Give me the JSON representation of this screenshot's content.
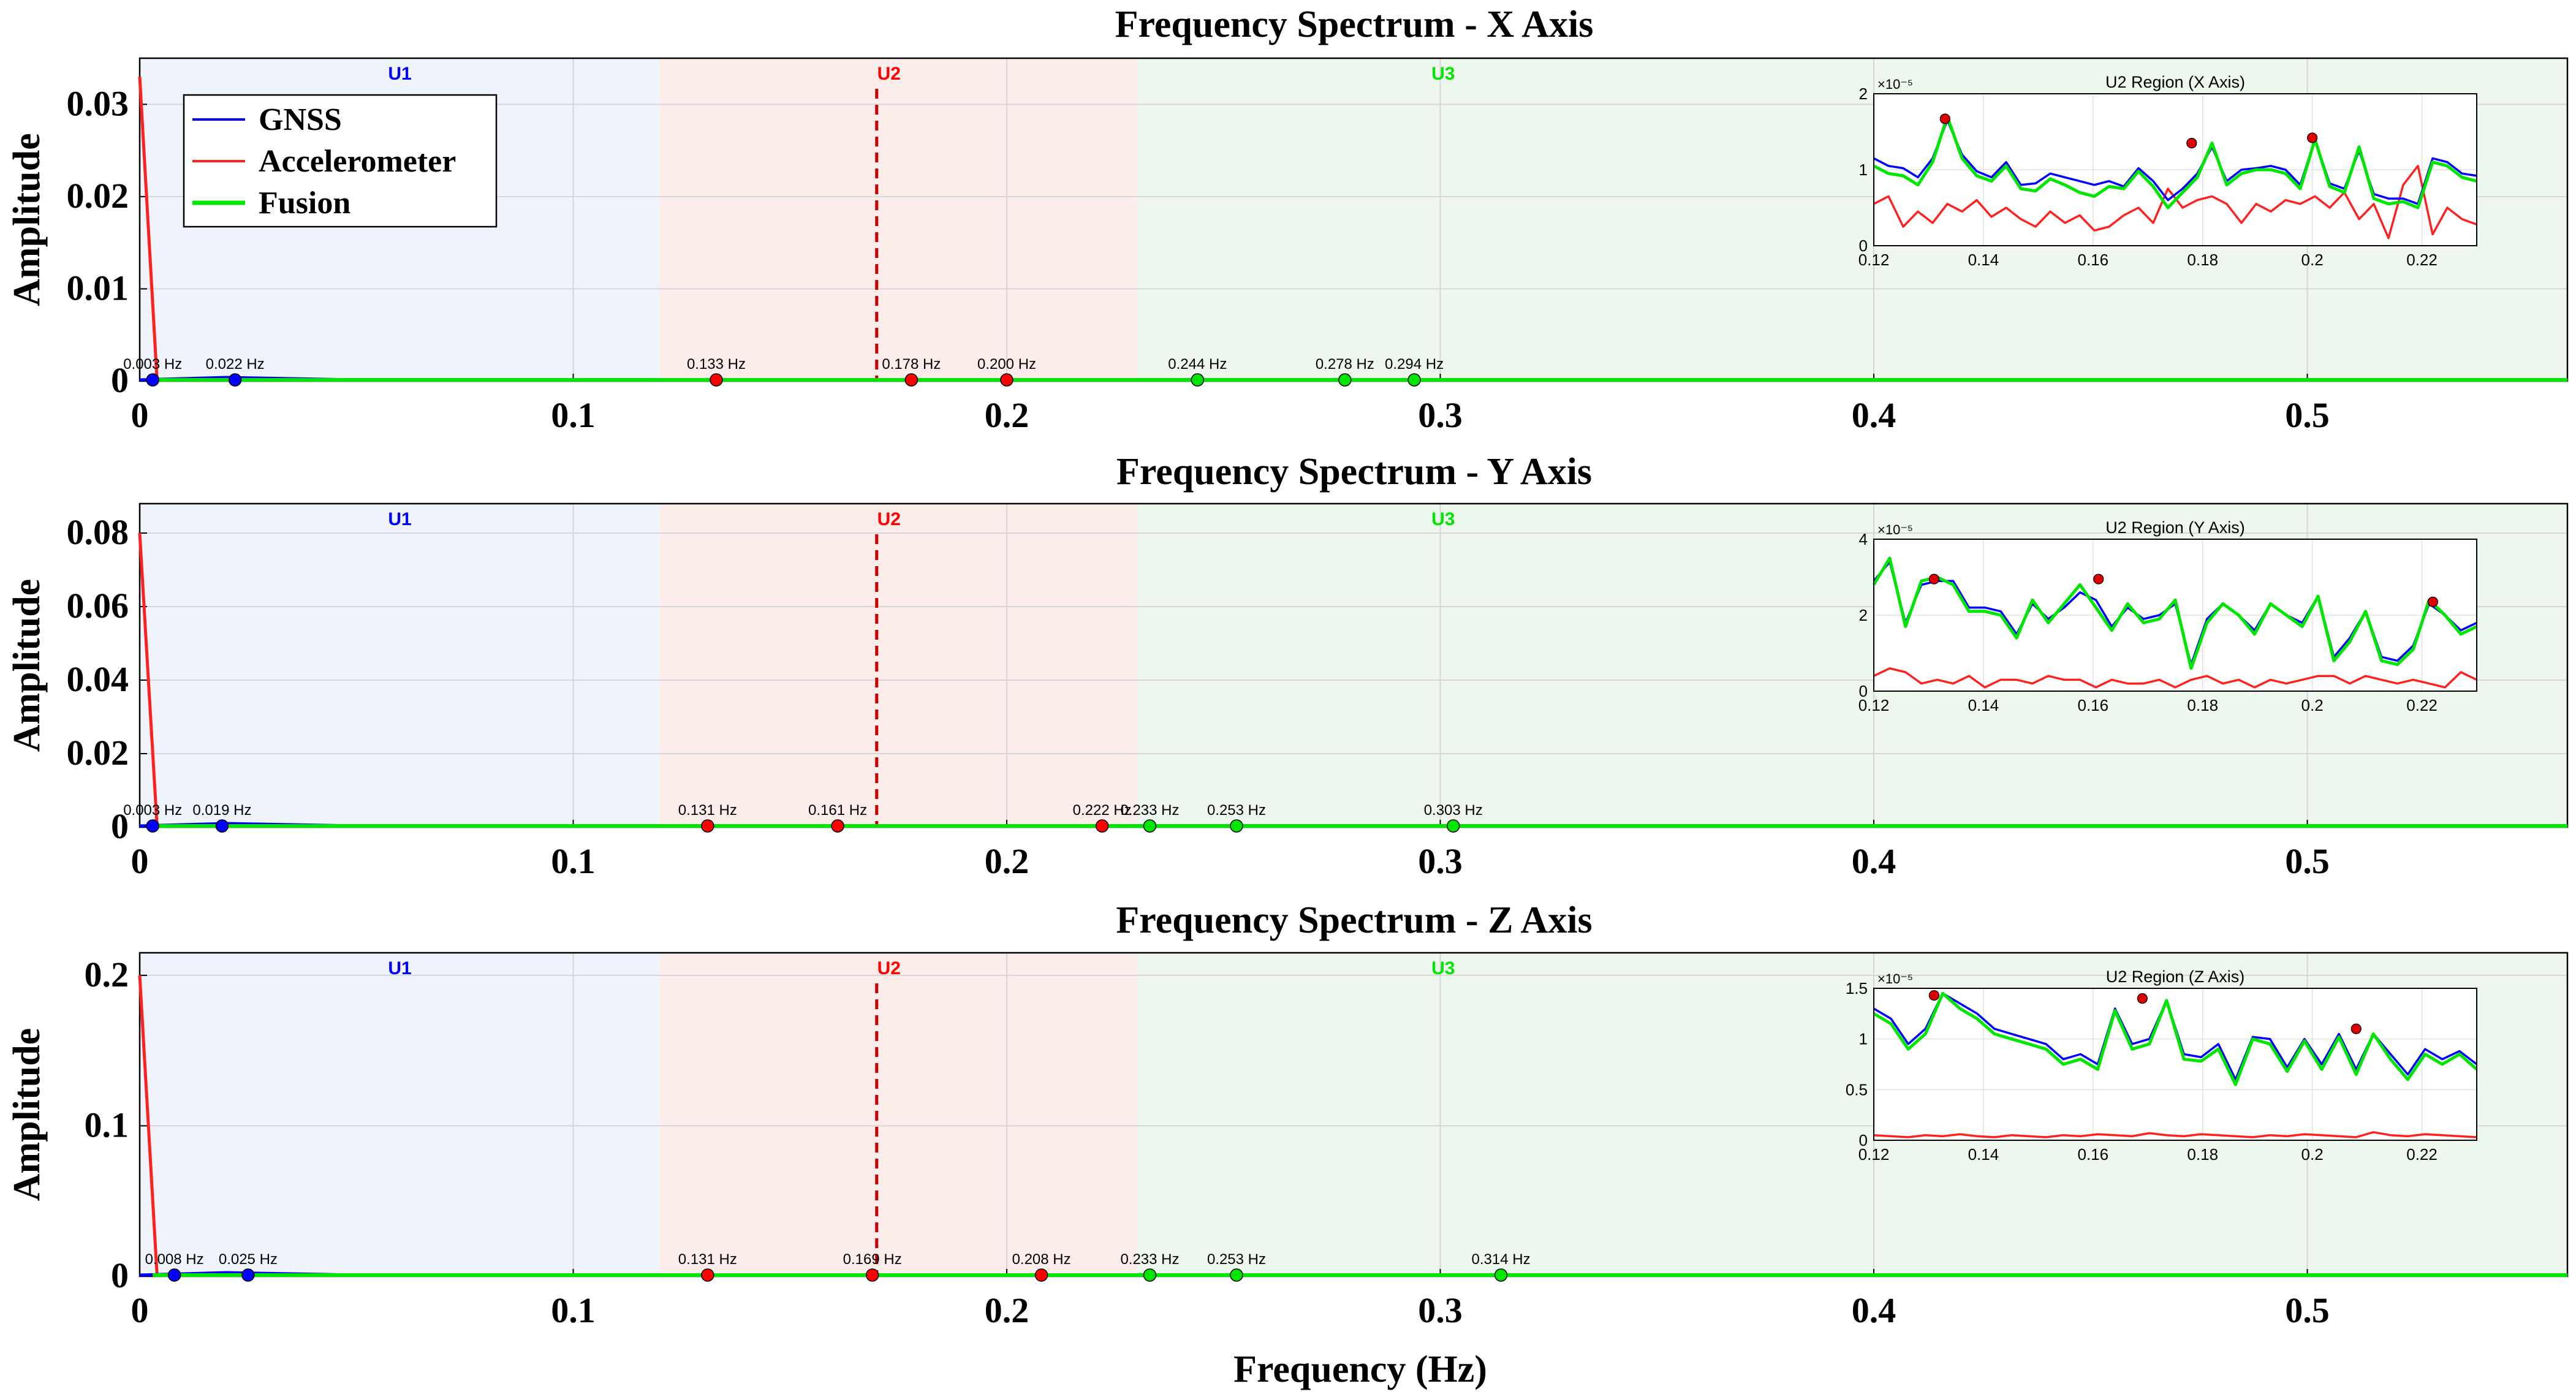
{
  "figure": {
    "xlabel": "Frequency (Hz)",
    "ylabel": "Amplitude",
    "legend": {
      "placement": "top-left of first panel",
      "entries": [
        {
          "name": "GNSS",
          "color": "#0000ff"
        },
        {
          "name": "Accelerometer",
          "color": "#ff2020"
        },
        {
          "name": "Fusion",
          "color": "#00e600"
        }
      ]
    },
    "colors": {
      "gnss": "#0000ff",
      "accelerometer": "#ff2020",
      "fusion": "#00e600",
      "u1_band": "#eef3fc",
      "u2_band": "#fcecea",
      "u3_band": "#edf7ed"
    }
  },
  "chart_data": [
    {
      "type": "line",
      "title": "Frequency Spectrum - X Axis",
      "xlabel": "",
      "ylabel": "Amplitude",
      "xlim": [
        0,
        0.56
      ],
      "ylim": [
        0,
        0.035
      ],
      "yticks": [
        0,
        0.01,
        0.02,
        0.03
      ],
      "ytick_labels": [
        "0",
        "0.01",
        "0.02",
        "0.03"
      ],
      "xticks": [
        0,
        0.1,
        0.2,
        0.3,
        0.4,
        0.5
      ],
      "xtick_labels": [
        "0",
        "0.1",
        "0.2",
        "0.3",
        "0.4",
        "0.5"
      ],
      "grid": true,
      "regions": [
        {
          "label": "U1",
          "range": [
            0,
            0.12
          ],
          "color": "#0000ff"
        },
        {
          "label": "U2",
          "range": [
            0.12,
            0.23
          ],
          "color": "#ff0000"
        },
        {
          "label": "U3",
          "range": [
            0.23,
            0.56
          ],
          "color": "#00e600"
        }
      ],
      "vline": 0.17,
      "accel_spike": 0.033,
      "peaks": [
        {
          "x": 0.003,
          "label": "0.003 Hz",
          "color": "#0000ff"
        },
        {
          "x": 0.022,
          "label": "0.022 Hz",
          "color": "#0000ff"
        },
        {
          "x": 0.133,
          "label": "0.133 Hz",
          "color": "#ff0000"
        },
        {
          "x": 0.178,
          "label": "0.178 Hz",
          "color": "#ff0000"
        },
        {
          "x": 0.2,
          "label": "0.200 Hz",
          "color": "#ff0000"
        },
        {
          "x": 0.244,
          "label": "0.244 Hz",
          "color": "#00e600"
        },
        {
          "x": 0.278,
          "label": "0.278 Hz",
          "color": "#00e600"
        },
        {
          "x": 0.294,
          "label": "0.294 Hz",
          "color": "#00e600"
        }
      ],
      "inset": {
        "title": "U2 Region (X Axis)",
        "exponent": "×10⁻⁵",
        "xlim": [
          0.12,
          0.23
        ],
        "ylim": [
          0,
          2
        ],
        "xticks": [
          0.12,
          0.14,
          0.16,
          0.18,
          0.2,
          0.22
        ],
        "xtick_labels": [
          "0.12",
          "0.14",
          "0.16",
          "0.18",
          "0.2",
          "0.22"
        ],
        "yticks": [
          0,
          1,
          2
        ],
        "ytick_labels": [
          "0",
          "1",
          "2"
        ],
        "series": [
          {
            "name": "GNSS",
            "color": "#0000ff",
            "values": [
              1.15,
              1.05,
              1.02,
              0.9,
              1.15,
              1.65,
              1.2,
              0.98,
              0.9,
              1.1,
              0.8,
              0.82,
              0.95,
              0.9,
              0.85,
              0.8,
              0.85,
              0.78,
              1.02,
              0.85,
              0.6,
              0.75,
              0.95,
              1.3,
              0.85,
              1.0,
              1.02,
              1.05,
              1.0,
              0.8,
              1.4,
              0.82,
              0.75,
              1.25,
              0.68,
              0.62,
              0.62,
              0.55,
              1.15,
              1.1,
              0.95,
              0.92
            ]
          },
          {
            "name": "Accelerometer",
            "color": "#ff2020",
            "values": [
              0.55,
              0.65,
              0.25,
              0.45,
              0.3,
              0.55,
              0.45,
              0.6,
              0.38,
              0.5,
              0.35,
              0.25,
              0.45,
              0.3,
              0.4,
              0.2,
              0.25,
              0.4,
              0.5,
              0.3,
              0.75,
              0.5,
              0.6,
              0.65,
              0.55,
              0.3,
              0.55,
              0.45,
              0.6,
              0.55,
              0.65,
              0.5,
              0.7,
              0.35,
              0.55,
              0.1,
              0.8,
              1.05,
              0.15,
              0.5,
              0.35,
              0.28
            ]
          },
          {
            "name": "Fusion",
            "color": "#00e600",
            "values": [
              1.05,
              0.95,
              0.92,
              0.8,
              1.1,
              1.7,
              1.15,
              0.92,
              0.85,
              1.05,
              0.75,
              0.72,
              0.88,
              0.8,
              0.7,
              0.65,
              0.78,
              0.75,
              0.98,
              0.78,
              0.5,
              0.7,
              0.9,
              1.35,
              0.8,
              0.95,
              1.0,
              1.0,
              0.95,
              0.75,
              1.4,
              0.78,
              0.7,
              1.3,
              0.62,
              0.55,
              0.58,
              0.5,
              1.1,
              1.05,
              0.9,
              0.85
            ]
          }
        ],
        "peaks": [
          {
            "x": 0.133,
            "y": 1.67
          },
          {
            "x": 0.178,
            "y": 1.35
          },
          {
            "x": 0.2,
            "y": 1.42
          }
        ]
      }
    },
    {
      "type": "line",
      "title": "Frequency Spectrum - Y Axis",
      "xlabel": "",
      "ylabel": "Amplitude",
      "xlim": [
        0,
        0.56
      ],
      "ylim": [
        0,
        0.088
      ],
      "yticks": [
        0,
        0.02,
        0.04,
        0.06,
        0.08
      ],
      "ytick_labels": [
        "0",
        "0.02",
        "0.04",
        "0.06",
        "0.08"
      ],
      "xticks": [
        0,
        0.1,
        0.2,
        0.3,
        0.4,
        0.5
      ],
      "xtick_labels": [
        "0",
        "0.1",
        "0.2",
        "0.3",
        "0.4",
        "0.5"
      ],
      "grid": true,
      "regions": [
        {
          "label": "U1",
          "range": [
            0,
            0.12
          ],
          "color": "#0000ff"
        },
        {
          "label": "U2",
          "range": [
            0.12,
            0.23
          ],
          "color": "#ff0000"
        },
        {
          "label": "U3",
          "range": [
            0.23,
            0.56
          ],
          "color": "#00e600"
        }
      ],
      "vline": 0.17,
      "accel_spike": 0.08,
      "peaks": [
        {
          "x": 0.003,
          "label": "0.003 Hz",
          "color": "#0000ff"
        },
        {
          "x": 0.019,
          "label": "0.019 Hz",
          "color": "#0000ff"
        },
        {
          "x": 0.131,
          "label": "0.131 Hz",
          "color": "#ff0000"
        },
        {
          "x": 0.161,
          "label": "0.161 Hz",
          "color": "#ff0000"
        },
        {
          "x": 0.222,
          "label": "0.222 Hz",
          "color": "#ff0000"
        },
        {
          "x": 0.233,
          "label": "0.233 Hz",
          "color": "#00e600"
        },
        {
          "x": 0.253,
          "label": "0.253 Hz",
          "color": "#00e600"
        },
        {
          "x": 0.303,
          "label": "0.303 Hz",
          "color": "#00e600"
        }
      ],
      "inset": {
        "title": "U2 Region (Y Axis)",
        "exponent": "×10⁻⁵",
        "xlim": [
          0.12,
          0.23
        ],
        "ylim": [
          0,
          4
        ],
        "xticks": [
          0.12,
          0.14,
          0.16,
          0.18,
          0.2,
          0.22
        ],
        "xtick_labels": [
          "0.12",
          "0.14",
          "0.16",
          "0.18",
          "0.2",
          "0.22"
        ],
        "yticks": [
          0,
          2,
          4
        ],
        "ytick_labels": [
          "0",
          "2",
          "4"
        ],
        "series": [
          {
            "name": "GNSS",
            "color": "#0000ff",
            "values": [
              2.9,
              3.4,
              1.8,
              2.8,
              2.9,
              2.9,
              2.2,
              2.2,
              2.1,
              1.5,
              2.3,
              1.9,
              2.2,
              2.6,
              2.4,
              1.7,
              2.2,
              1.9,
              2.0,
              2.3,
              0.7,
              1.9,
              2.3,
              2.0,
              1.6,
              2.3,
              2.0,
              1.8,
              2.5,
              0.9,
              1.4,
              2.1,
              0.9,
              0.8,
              1.2,
              2.3,
              2.0,
              1.6,
              1.8
            ]
          },
          {
            "name": "Accelerometer",
            "color": "#ff2020",
            "values": [
              0.4,
              0.6,
              0.5,
              0.2,
              0.3,
              0.2,
              0.4,
              0.1,
              0.3,
              0.3,
              0.2,
              0.4,
              0.3,
              0.3,
              0.1,
              0.3,
              0.2,
              0.2,
              0.3,
              0.1,
              0.3,
              0.4,
              0.2,
              0.3,
              0.1,
              0.3,
              0.2,
              0.3,
              0.4,
              0.4,
              0.2,
              0.4,
              0.3,
              0.2,
              0.3,
              0.2,
              0.1,
              0.5,
              0.3
            ]
          },
          {
            "name": "Fusion",
            "color": "#00e600",
            "values": [
              2.8,
              3.5,
              1.7,
              2.9,
              3.0,
              2.8,
              2.1,
              2.1,
              2.0,
              1.4,
              2.4,
              1.8,
              2.3,
              2.8,
              2.2,
              1.6,
              2.3,
              1.8,
              1.9,
              2.4,
              0.6,
              1.8,
              2.3,
              2.0,
              1.5,
              2.3,
              2.0,
              1.7,
              2.5,
              0.8,
              1.3,
              2.1,
              0.8,
              0.7,
              1.1,
              2.4,
              2.0,
              1.5,
              1.7
            ]
          }
        ],
        "peaks": [
          {
            "x": 0.131,
            "y": 2.95
          },
          {
            "x": 0.161,
            "y": 2.95
          },
          {
            "x": 0.222,
            "y": 2.35
          }
        ]
      }
    },
    {
      "type": "line",
      "title": "Frequency Spectrum - Z Axis",
      "xlabel": "Frequency (Hz)",
      "ylabel": "Amplitude",
      "xlim": [
        0,
        0.56
      ],
      "ylim": [
        0,
        0.215
      ],
      "yticks": [
        0,
        0.1,
        0.2
      ],
      "ytick_labels": [
        "0",
        "0.1",
        "0.2"
      ],
      "xticks": [
        0,
        0.1,
        0.2,
        0.3,
        0.4,
        0.5
      ],
      "xtick_labels": [
        "0",
        "0.1",
        "0.2",
        "0.3",
        "0.4",
        "0.5"
      ],
      "grid": true,
      "regions": [
        {
          "label": "U1",
          "range": [
            0,
            0.12
          ],
          "color": "#0000ff"
        },
        {
          "label": "U2",
          "range": [
            0.12,
            0.23
          ],
          "color": "#ff0000"
        },
        {
          "label": "U3",
          "range": [
            0.23,
            0.56
          ],
          "color": "#00e600"
        }
      ],
      "vline": 0.17,
      "accel_spike": 0.2,
      "peaks": [
        {
          "x": 0.008,
          "label": "0.008 Hz",
          "color": "#0000ff"
        },
        {
          "x": 0.025,
          "label": "0.025 Hz",
          "color": "#0000ff"
        },
        {
          "x": 0.131,
          "label": "0.131 Hz",
          "color": "#ff0000"
        },
        {
          "x": 0.169,
          "label": "0.169 Hz",
          "color": "#ff0000"
        },
        {
          "x": 0.208,
          "label": "0.208 Hz",
          "color": "#ff0000"
        },
        {
          "x": 0.233,
          "label": "0.233 Hz",
          "color": "#00e600"
        },
        {
          "x": 0.253,
          "label": "0.253 Hz",
          "color": "#00e600"
        },
        {
          "x": 0.314,
          "label": "0.314 Hz",
          "color": "#00e600"
        }
      ],
      "inset": {
        "title": "U2 Region (Z Axis)",
        "exponent": "×10⁻⁵",
        "xlim": [
          0.12,
          0.23
        ],
        "ylim": [
          0,
          1.5
        ],
        "xticks": [
          0.12,
          0.14,
          0.16,
          0.18,
          0.2,
          0.22
        ],
        "xtick_labels": [
          "0.12",
          "0.14",
          "0.16",
          "0.18",
          "0.2",
          "0.22"
        ],
        "yticks": [
          0,
          0.5,
          1,
          1.5
        ],
        "ytick_labels": [
          "0",
          "0.5",
          "1",
          "1.5"
        ],
        "series": [
          {
            "name": "GNSS",
            "color": "#0000ff",
            "values": [
              1.3,
              1.2,
              0.95,
              1.1,
              1.45,
              1.35,
              1.25,
              1.1,
              1.05,
              1.0,
              0.95,
              0.8,
              0.85,
              0.75,
              1.3,
              0.95,
              1.0,
              1.38,
              0.85,
              0.82,
              0.95,
              0.6,
              1.02,
              1.0,
              0.72,
              1.0,
              0.75,
              1.05,
              0.7,
              1.05,
              0.85,
              0.65,
              0.9,
              0.8,
              0.88,
              0.75
            ]
          },
          {
            "name": "Accelerometer",
            "color": "#ff2020",
            "values": [
              0.05,
              0.04,
              0.03,
              0.05,
              0.04,
              0.06,
              0.04,
              0.03,
              0.05,
              0.04,
              0.03,
              0.05,
              0.04,
              0.06,
              0.05,
              0.04,
              0.07,
              0.05,
              0.04,
              0.06,
              0.05,
              0.04,
              0.03,
              0.05,
              0.04,
              0.06,
              0.05,
              0.04,
              0.03,
              0.08,
              0.05,
              0.04,
              0.06,
              0.05,
              0.04,
              0.03
            ]
          },
          {
            "name": "Fusion",
            "color": "#00e600",
            "values": [
              1.25,
              1.15,
              0.9,
              1.05,
              1.45,
              1.3,
              1.2,
              1.05,
              1.0,
              0.95,
              0.9,
              0.75,
              0.8,
              0.7,
              1.28,
              0.9,
              0.95,
              1.38,
              0.8,
              0.78,
              0.9,
              0.55,
              1.0,
              0.95,
              0.68,
              0.98,
              0.7,
              1.02,
              0.65,
              1.05,
              0.8,
              0.6,
              0.85,
              0.75,
              0.85,
              0.7
            ]
          }
        ],
        "peaks": [
          {
            "x": 0.131,
            "y": 1.43
          },
          {
            "x": 0.169,
            "y": 1.4
          },
          {
            "x": 0.208,
            "y": 1.1
          }
        ]
      }
    }
  ]
}
